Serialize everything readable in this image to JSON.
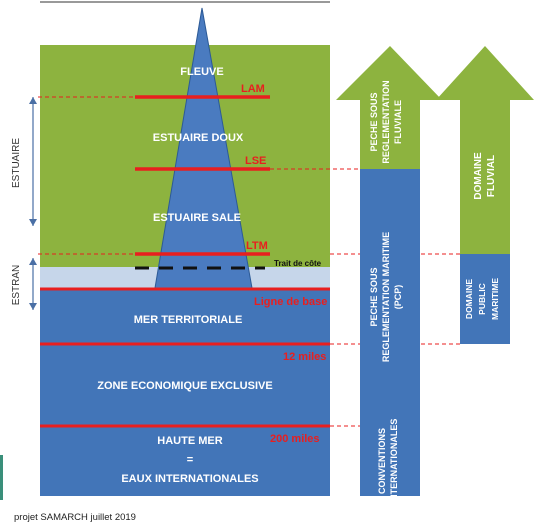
{
  "side_labels": {
    "estuaire": "ESTUAIRE",
    "estran": "ESTRAN"
  },
  "zones": {
    "fleuve": "FLEUVE",
    "estuaire_doux": "ESTUAIRE DOUX",
    "estuaire_sale": "ESTUAIRE SALE",
    "mer_territoriale": "MER TERRITORIALE",
    "zee": "ZONE ECONOMIQUE EXCLUSIVE",
    "haute_mer_1": "HAUTE MER",
    "haute_mer_2": "=",
    "haute_mer_3": "EAUX INTERNATIONALES"
  },
  "limits": {
    "lam": "LAM",
    "lse": "LSE",
    "ltm": "LTM",
    "trait_de_cote": "Trait de côte",
    "ligne_de_base": "Ligne de base",
    "miles_12": "12 miles",
    "miles_200": "200 miles"
  },
  "columns": {
    "peche_fluviale": [
      "PECHE SOUS",
      "REGLEMENTATION",
      "FLUVIALE"
    ],
    "peche_maritime": [
      "PECHE SOUS",
      "REGLEMENTATION MARITIME",
      "(PCP)"
    ],
    "conventions": [
      "CONVENTIONS",
      "INTERNATIONALES"
    ],
    "domaine_fluvial": [
      "DOMAINE",
      "FLUVIAL"
    ],
    "domaine_maritime": [
      "DOMAINE",
      "PUBLIC",
      "MARITIME"
    ]
  },
  "footer": "projet SAMARCH juillet 2019",
  "colors": {
    "green": "#8db33f",
    "blue": "#4275b8",
    "red": "#e81f1f",
    "light_blue": "#c6d6ea"
  }
}
